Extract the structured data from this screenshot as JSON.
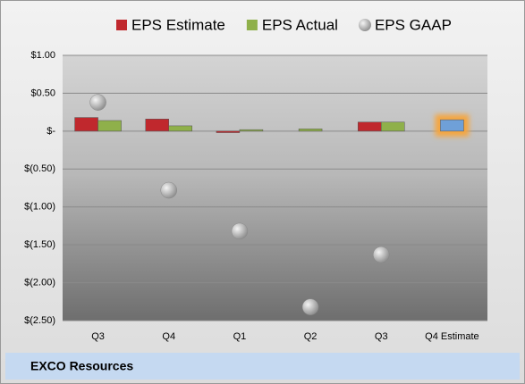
{
  "chart_data": {
    "type": "bar",
    "title": "EXCO Resources",
    "categories": [
      "Q3",
      "Q4",
      "Q1",
      "Q2",
      "Q3",
      "Q4 Estimate"
    ],
    "series": [
      {
        "name": "EPS Estimate",
        "color": "#c0282d",
        "kind": "bar",
        "values": [
          0.18,
          0.16,
          -0.02,
          null,
          0.12,
          0.15
        ],
        "highlight_index": 5,
        "highlight_color": "#6fa0d8"
      },
      {
        "name": "EPS Actual",
        "color": "#8fb04a",
        "kind": "bar",
        "values": [
          0.14,
          0.07,
          0.02,
          0.03,
          0.12,
          null
        ]
      },
      {
        "name": "EPS GAAP",
        "color": "#b4b4b4",
        "kind": "dot",
        "values": [
          0.38,
          -0.78,
          -1.32,
          -2.32,
          -1.63,
          null
        ]
      }
    ],
    "ylim": [
      -2.5,
      1.0
    ],
    "yticks": [
      {
        "value": 1.0,
        "label": "$1.00"
      },
      {
        "value": 0.5,
        "label": "$0.50"
      },
      {
        "value": 0,
        "label": "$-"
      },
      {
        "value": -0.5,
        "label": "$(0.50)"
      },
      {
        "value": -1.0,
        "label": "$(1.00)"
      },
      {
        "value": -1.5,
        "label": "$(1.50)"
      },
      {
        "value": -2.0,
        "label": "$(2.00)"
      },
      {
        "value": -2.5,
        "label": "$(2.50)"
      }
    ],
    "grid": true
  }
}
